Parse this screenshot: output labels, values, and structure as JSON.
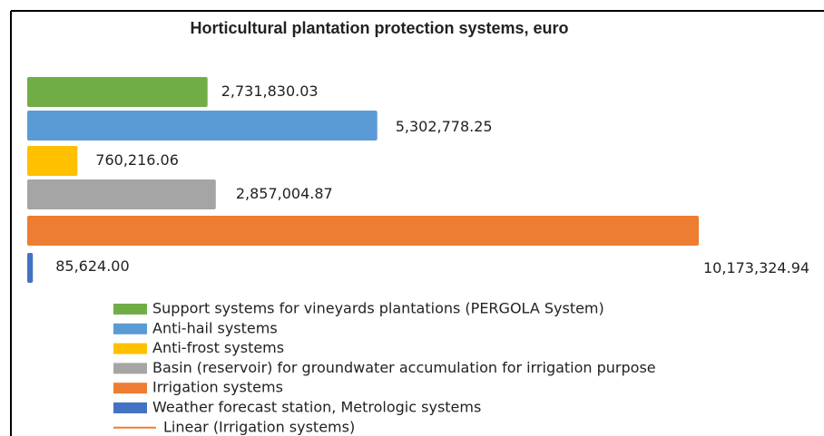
{
  "chart_data": {
    "type": "bar",
    "orientation": "horizontal",
    "title": "Horticultural plantation protection systems, euro",
    "series": [
      {
        "name": "Support systems for vineyards plantations (PERGOLA System)",
        "color": "#70ad47",
        "values": [
          2731830.03
        ],
        "value_labels": [
          "2,731,830.03"
        ]
      },
      {
        "name": "Anti-hail systems",
        "color": "#5b9bd5",
        "values": [
          5302778.25
        ],
        "value_labels": [
          "5,302,778.25"
        ]
      },
      {
        "name": "Anti-frost systems",
        "color": "#ffc000",
        "values": [
          760216.06
        ],
        "value_labels": [
          "760,216.06"
        ]
      },
      {
        "name": "Basin (reservoir) for groundwater accumulation for irrigation purpose",
        "color": "#a5a5a5",
        "values": [
          2857004.87
        ],
        "value_labels": [
          "2,857,004.87"
        ]
      },
      {
        "name": "Irrigation systems",
        "color": "#ed7d31",
        "values": [
          10173324.94
        ],
        "value_labels": [
          "10,173,324.94"
        ]
      },
      {
        "name": "Weather forecast station, Metrologic systems",
        "color": "#4472c4",
        "values": [
          85624.0
        ],
        "value_labels": [
          "85,624.00"
        ]
      }
    ],
    "trendline": {
      "name": "Linear (Irrigation systems)",
      "color": "#ed7d31"
    },
    "legend": "bottom"
  }
}
